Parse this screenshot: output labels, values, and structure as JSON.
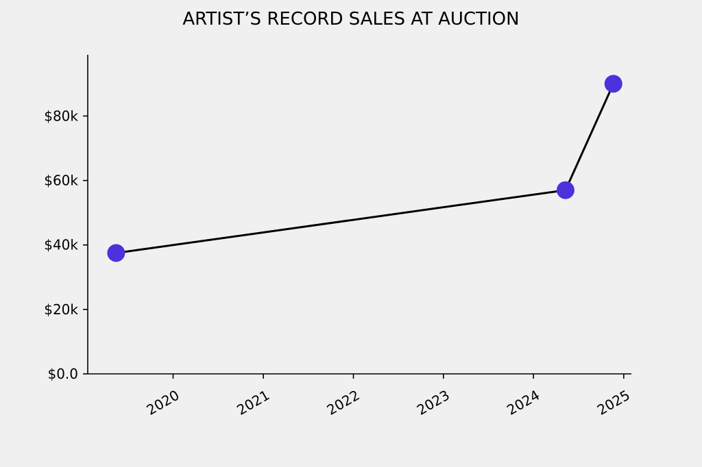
{
  "chart_data": {
    "type": "line",
    "title": "ARTIST’S RECORD SALES AT AUCTION",
    "xlabel": "",
    "ylabel": "",
    "x_axis_kind": "date",
    "xlim": [
      "2019-01-20",
      "2025-02-01"
    ],
    "ylim": [
      0,
      99000
    ],
    "x_ticks": [
      {
        "value": "2020-01-01",
        "label": "2020"
      },
      {
        "value": "2021-01-01",
        "label": "2021"
      },
      {
        "value": "2022-01-01",
        "label": "2022"
      },
      {
        "value": "2023-01-01",
        "label": "2023"
      },
      {
        "value": "2024-01-01",
        "label": "2024"
      },
      {
        "value": "2025-01-01",
        "label": "2025"
      }
    ],
    "y_ticks": [
      {
        "value": 0,
        "label": "$0.0"
      },
      {
        "value": 20000,
        "label": "$20k"
      },
      {
        "value": 40000,
        "label": "$40k"
      },
      {
        "value": 60000,
        "label": "$60k"
      },
      {
        "value": 80000,
        "label": "$80k"
      }
    ],
    "grid": false,
    "series": [
      {
        "line_color": "#000000",
        "marker_color": "#4b32dc",
        "points": [
          {
            "x": "2019-05-15",
            "y": 37500
          },
          {
            "x": "2024-05-10",
            "y": 57000
          },
          {
            "x": "2024-11-20",
            "y": 90000
          }
        ]
      }
    ]
  }
}
